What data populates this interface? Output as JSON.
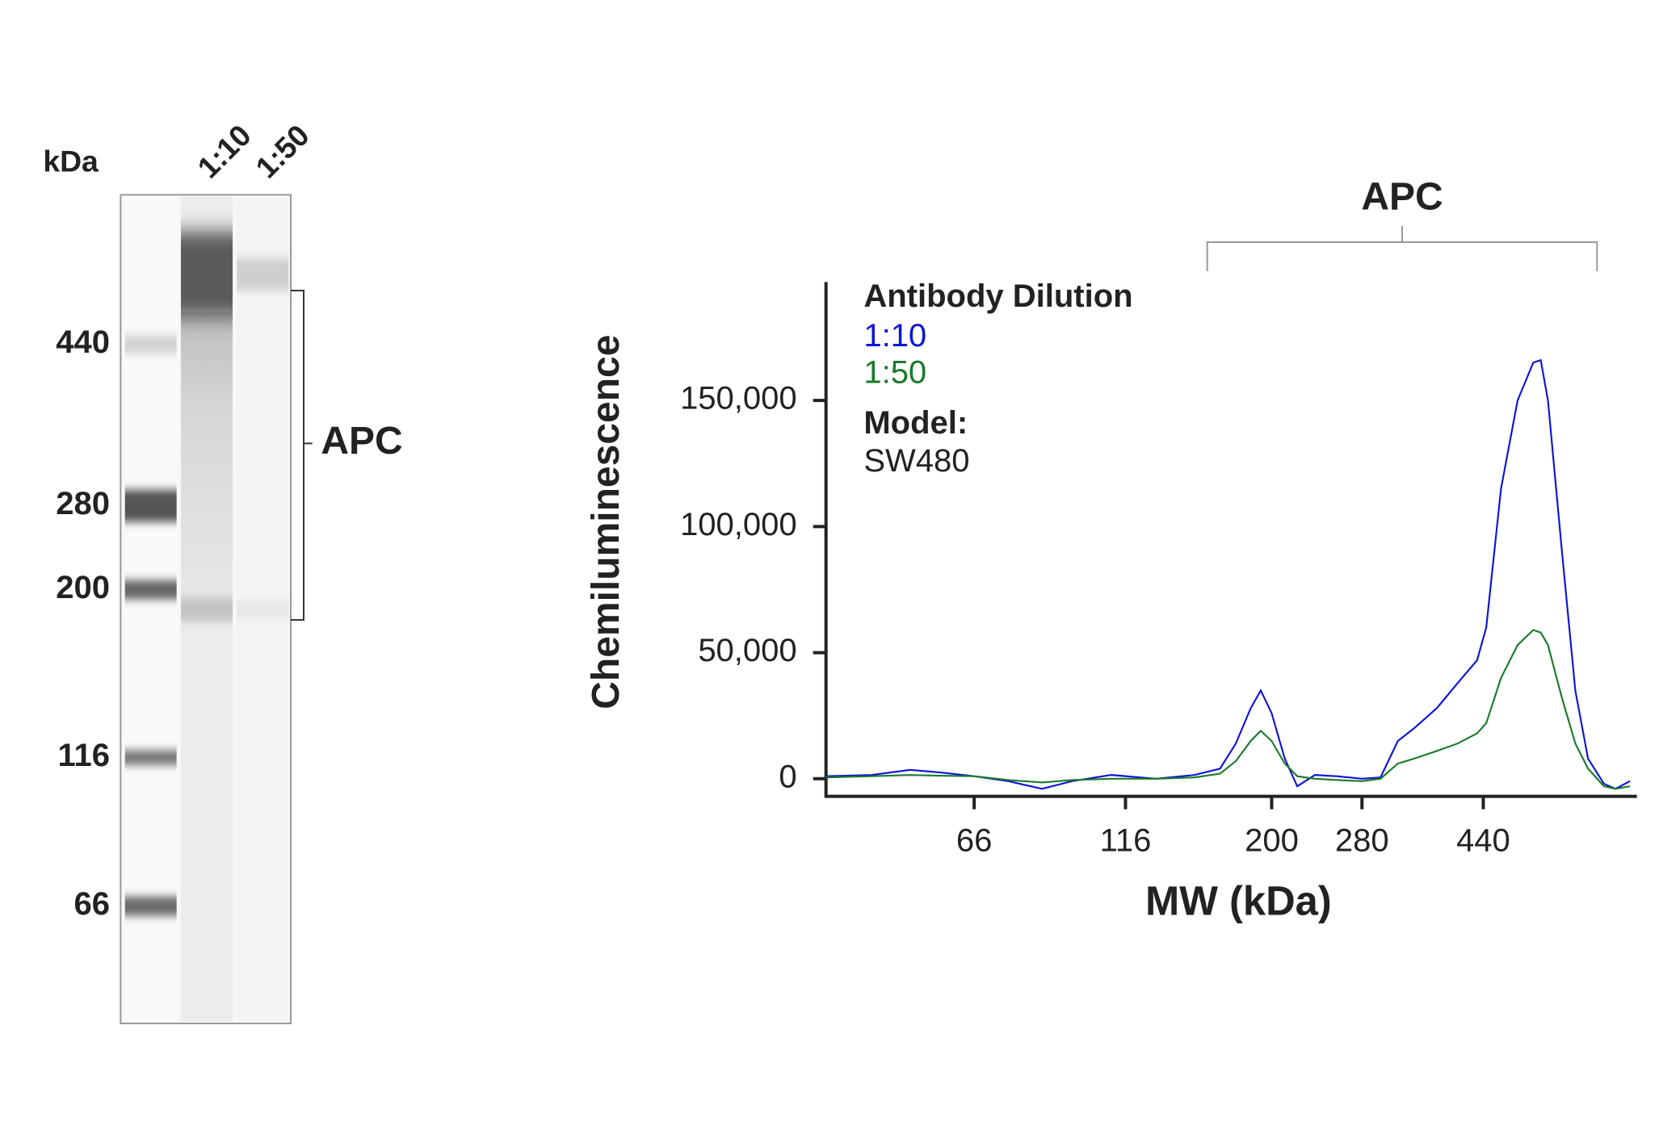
{
  "gel": {
    "unit_label": "kDa",
    "lanes": [
      "1:10",
      "1:50"
    ],
    "markers": [
      440,
      280,
      200,
      116,
      66
    ],
    "band_label": "APC"
  },
  "chart_data": {
    "type": "line",
    "xscale": "log",
    "y_label": "Chemiluminescence",
    "x_label": "MW (kDa)",
    "legend_title": "Antibody Dilution",
    "model_label": "Model:",
    "model": "SW480",
    "bracket_label": "APC",
    "x": [
      38,
      45,
      52,
      58,
      66,
      75,
      85,
      95,
      110,
      130,
      150,
      165,
      175,
      185,
      192,
      200,
      210,
      220,
      235,
      255,
      280,
      300,
      320,
      340,
      370,
      400,
      430,
      445,
      470,
      500,
      530,
      545,
      560,
      590,
      620,
      650,
      690,
      720,
      760
    ],
    "series": [
      {
        "name": "1:10",
        "color": "#0a14d8",
        "values": [
          1000,
          1500,
          3500,
          2500,
          1000,
          -1000,
          -4000,
          -1000,
          1500,
          0,
          1500,
          4000,
          14000,
          28000,
          35000,
          26000,
          8000,
          -3000,
          1500,
          1000,
          0,
          500,
          15000,
          20000,
          28000,
          38000,
          47000,
          60000,
          115000,
          150000,
          165000,
          166000,
          150000,
          90000,
          35000,
          8000,
          -2000,
          -4000,
          -1000
        ]
      },
      {
        "name": "1:50",
        "color": "#1a7a2a",
        "values": [
          500,
          1000,
          1500,
          1200,
          1000,
          -500,
          -1500,
          -500,
          0,
          0,
          500,
          2000,
          7000,
          15000,
          19000,
          15000,
          6000,
          1000,
          0,
          -500,
          -1000,
          0,
          6000,
          8000,
          11000,
          14000,
          18000,
          22000,
          40000,
          53000,
          59000,
          58000,
          53000,
          32000,
          14000,
          4000,
          -3000,
          -4000,
          -3000
        ]
      }
    ],
    "xlim": [
      38,
      780
    ],
    "xticks": [
      66,
      116,
      200,
      280,
      440
    ],
    "ylim": [
      -7000,
      197000
    ],
    "yticks": [
      {
        "value": 0,
        "label": "0"
      },
      {
        "value": 50000,
        "label": "50,000"
      },
      {
        "value": 100000,
        "label": "100,000"
      },
      {
        "value": 150000,
        "label": "150,000"
      }
    ]
  }
}
